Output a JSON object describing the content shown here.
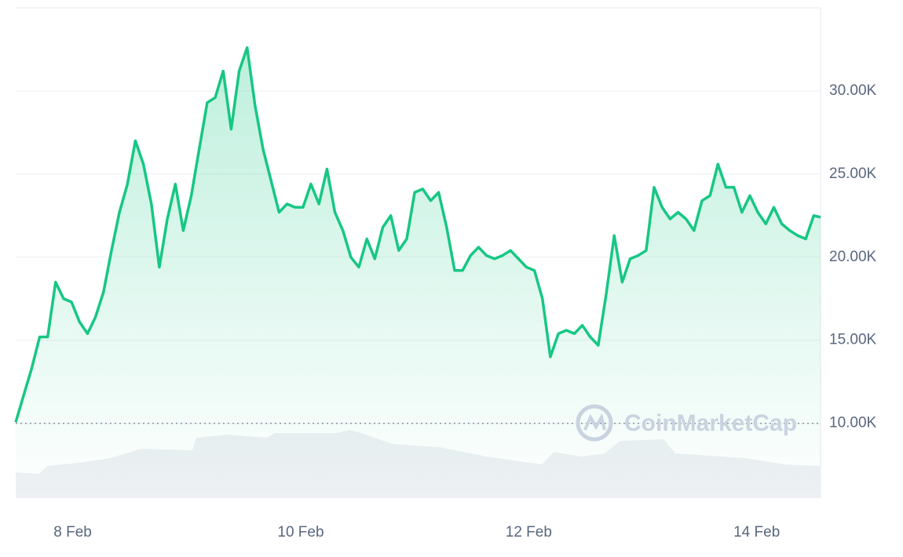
{
  "chart_data": {
    "type": "line",
    "x": [
      7.5,
      7.57,
      7.64,
      7.71,
      7.78,
      7.85,
      7.92,
      7.99,
      8.06,
      8.13,
      8.2,
      8.27,
      8.34,
      8.41,
      8.48,
      8.55,
      8.62,
      8.69,
      8.76,
      8.83,
      8.9,
      8.97,
      9.04,
      9.11,
      9.18,
      9.25,
      9.32,
      9.39,
      9.46,
      9.53,
      9.6,
      9.67,
      9.74,
      9.81,
      9.88,
      9.95,
      10.02,
      10.09,
      10.16,
      10.23,
      10.3,
      10.37,
      10.44,
      10.51,
      10.58,
      10.65,
      10.72,
      10.79,
      10.86,
      10.93,
      11.0,
      11.07,
      11.14,
      11.21,
      11.28,
      11.35,
      11.42,
      11.49,
      11.56,
      11.63,
      11.7,
      11.77,
      11.84,
      11.91,
      11.98,
      12.05,
      12.12,
      12.19,
      12.26,
      12.33,
      12.4,
      12.47,
      12.54,
      12.61,
      12.68,
      12.75,
      12.82,
      12.89,
      12.96,
      13.03,
      13.1,
      13.17,
      13.24,
      13.31,
      13.38,
      13.45,
      13.52,
      13.59,
      13.66,
      13.73,
      13.8,
      13.87,
      13.94,
      14.01,
      14.08,
      14.15,
      14.22,
      14.29,
      14.36,
      14.43,
      14.5,
      14.56
    ],
    "series": [
      {
        "color": "#16c784",
        "values": [
          10070,
          11700,
          13300,
          15200,
          15200,
          18500,
          17500,
          17300,
          16100,
          15400,
          16400,
          17900,
          20400,
          22700,
          24400,
          27000,
          25600,
          23200,
          19400,
          22300,
          24400,
          21600,
          23700,
          26500,
          29300,
          29600,
          31200,
          27700,
          31200,
          32600,
          29100,
          26500,
          24600,
          22700,
          23200,
          23000,
          23000,
          24400,
          23200,
          25300,
          22700,
          21600,
          20000,
          19400,
          21100,
          19900,
          21800,
          22500,
          20400,
          21100,
          23900,
          24100,
          23400,
          23900,
          21800,
          19200,
          19200,
          20100,
          20600,
          20100,
          19900,
          20100,
          20400,
          19900,
          19400,
          19200,
          17500,
          14000,
          15400,
          15600,
          15400,
          15900,
          15200,
          14700,
          17800,
          21300,
          18500,
          19900,
          20100,
          20400,
          24200,
          23000,
          22300,
          22700,
          22300,
          21600,
          23400,
          23700,
          25600,
          24200,
          24200,
          22700,
          23700,
          22700,
          22000,
          23000,
          22000,
          21600,
          21300,
          21100,
          22500,
          22400
        ]
      }
    ],
    "xlim": [
      7.5,
      14.56
    ],
    "xticks": [
      {
        "value": 8,
        "label": "8 Feb"
      },
      {
        "value": 10,
        "label": "10 Feb"
      },
      {
        "value": 12,
        "label": "12 Feb"
      },
      {
        "value": 14,
        "label": "14 Feb"
      }
    ],
    "ylim": [
      5500,
      35000
    ],
    "yticks": [
      {
        "value": 10000,
        "label": "10.00K"
      },
      {
        "value": 15000,
        "label": "15.00K"
      },
      {
        "value": 20000,
        "label": "20.00K"
      },
      {
        "value": 25000,
        "label": "25.00K"
      },
      {
        "value": 30000,
        "label": "30.00K"
      }
    ],
    "grid": true,
    "baseline": 10000,
    "watermark": "CoinMarketCap"
  }
}
